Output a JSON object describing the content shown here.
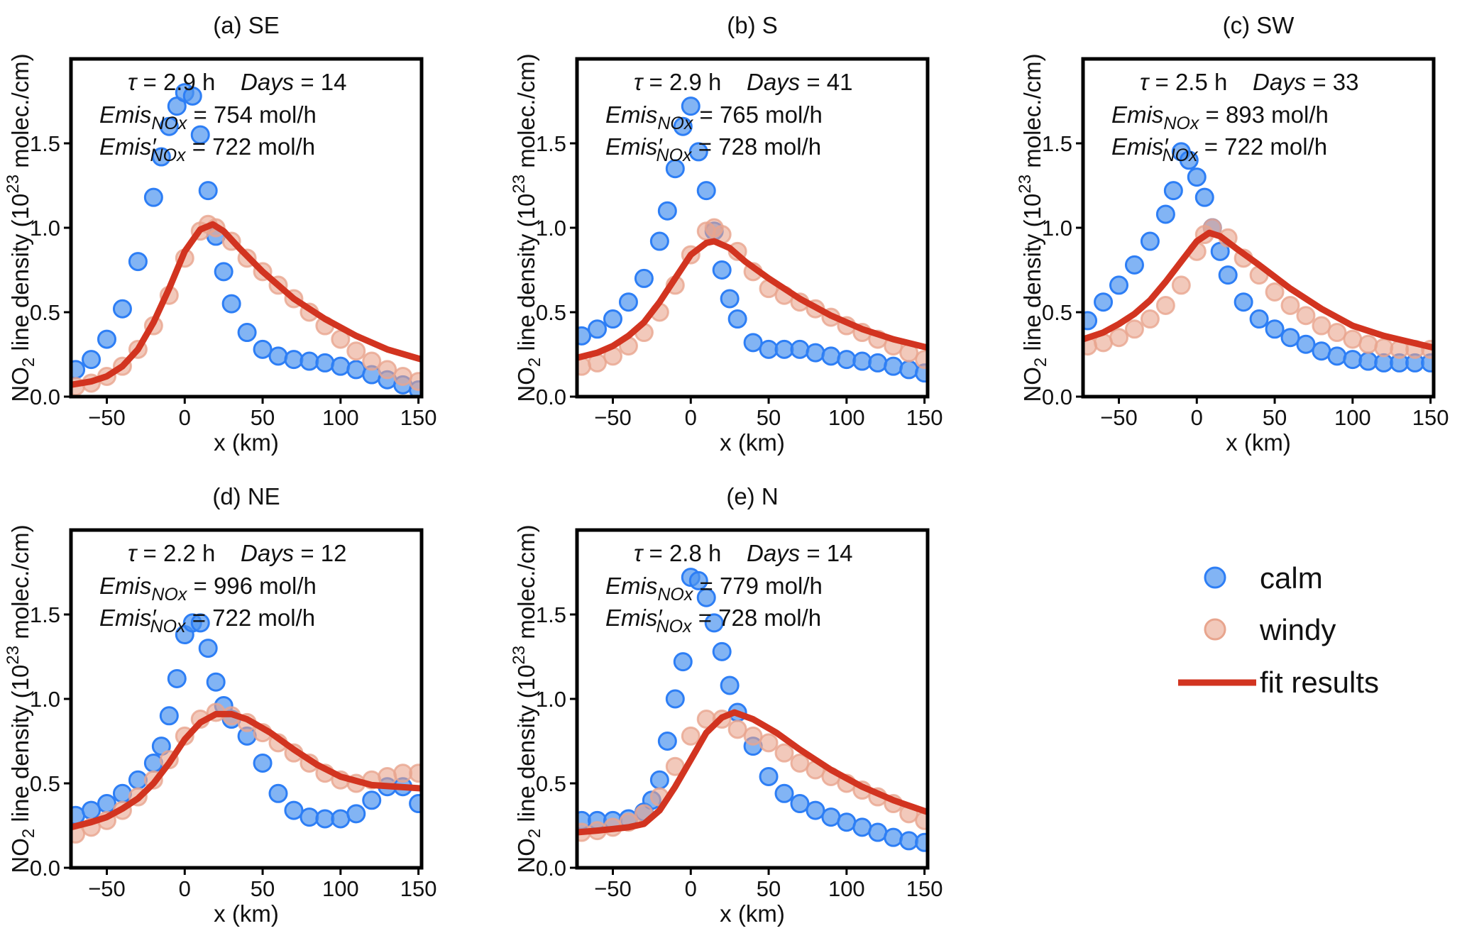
{
  "chart_data": [
    {
      "type": "scatter",
      "title": "(a) SE",
      "xlabel": "x (km)",
      "ylabel_parts": [
        "NO",
        "2",
        " line density (10",
        "23",
        " molec./cm)"
      ],
      "xlim": [
        -73,
        152
      ],
      "ylim": [
        0,
        2.0
      ],
      "xticks": [
        "−50",
        "0",
        "50",
        "100",
        "150"
      ],
      "xtick_values": [
        -50,
        0,
        50,
        100,
        150
      ],
      "yticks": [
        "0.0",
        "0.5",
        "1.0",
        "1.5"
      ],
      "ytick_values": [
        0.0,
        0.5,
        1.0,
        1.5
      ],
      "annotations": {
        "tau": "= 2.9 h",
        "days": "= 14",
        "emis": "= 754 mol/h",
        "emis_prime": "= 722 mol/h"
      },
      "calm": {
        "x": [
          -70,
          -60,
          -50,
          -40,
          -30,
          -20,
          -15,
          -10,
          -5,
          0,
          5,
          10,
          15,
          20,
          25,
          30,
          40,
          50,
          60,
          70,
          80,
          90,
          100,
          110,
          120,
          130,
          140,
          150
        ],
        "y": [
          0.16,
          0.22,
          0.34,
          0.52,
          0.8,
          1.18,
          1.42,
          1.6,
          1.72,
          1.8,
          1.78,
          1.55,
          1.22,
          0.95,
          0.74,
          0.55,
          0.38,
          0.28,
          0.24,
          0.22,
          0.21,
          0.2,
          0.18,
          0.16,
          0.13,
          0.1,
          0.07,
          0.04
        ]
      },
      "windy": {
        "x": [
          -70,
          -60,
          -50,
          -40,
          -30,
          -20,
          -10,
          0,
          10,
          15,
          20,
          30,
          40,
          50,
          60,
          70,
          80,
          90,
          100,
          110,
          120,
          130,
          140,
          150
        ],
        "y": [
          0.06,
          0.08,
          0.12,
          0.18,
          0.28,
          0.42,
          0.6,
          0.82,
          0.98,
          1.02,
          1.0,
          0.92,
          0.82,
          0.74,
          0.66,
          0.58,
          0.5,
          0.42,
          0.34,
          0.27,
          0.21,
          0.16,
          0.12,
          0.09
        ]
      },
      "fit": {
        "x": [
          -73,
          -60,
          -50,
          -40,
          -30,
          -20,
          -10,
          0,
          10,
          18,
          25,
          35,
          50,
          70,
          90,
          110,
          130,
          152
        ],
        "y": [
          0.07,
          0.09,
          0.12,
          0.18,
          0.28,
          0.44,
          0.64,
          0.86,
          0.99,
          1.02,
          0.98,
          0.88,
          0.74,
          0.58,
          0.46,
          0.36,
          0.28,
          0.22
        ]
      }
    },
    {
      "type": "scatter",
      "title": "(b) S",
      "xlabel": "x (km)",
      "ylabel_parts": [
        "NO",
        "2",
        " line density (10",
        "23",
        " molec./cm)"
      ],
      "xlim": [
        -73,
        152
      ],
      "ylim": [
        0,
        2.0
      ],
      "xticks": [
        "−50",
        "0",
        "50",
        "100",
        "150"
      ],
      "xtick_values": [
        -50,
        0,
        50,
        100,
        150
      ],
      "yticks": [
        "0.0",
        "0.5",
        "1.0",
        "1.5"
      ],
      "ytick_values": [
        0.0,
        0.5,
        1.0,
        1.5
      ],
      "annotations": {
        "tau": "= 2.9 h",
        "days": "= 41",
        "emis": "= 765 mol/h",
        "emis_prime": "= 728 mol/h"
      },
      "calm": {
        "x": [
          -70,
          -60,
          -50,
          -40,
          -30,
          -20,
          -15,
          -10,
          -5,
          0,
          5,
          10,
          15,
          20,
          25,
          30,
          40,
          50,
          60,
          70,
          80,
          90,
          100,
          110,
          120,
          130,
          140,
          150
        ],
        "y": [
          0.36,
          0.4,
          0.46,
          0.56,
          0.7,
          0.92,
          1.1,
          1.35,
          1.6,
          1.72,
          1.45,
          1.22,
          0.98,
          0.75,
          0.58,
          0.46,
          0.32,
          0.28,
          0.28,
          0.28,
          0.26,
          0.24,
          0.22,
          0.21,
          0.2,
          0.18,
          0.16,
          0.14
        ]
      },
      "windy": {
        "x": [
          -70,
          -60,
          -50,
          -40,
          -30,
          -20,
          -10,
          0,
          10,
          15,
          20,
          30,
          40,
          50,
          60,
          70,
          80,
          90,
          100,
          110,
          120,
          130,
          140,
          150
        ],
        "y": [
          0.18,
          0.2,
          0.24,
          0.3,
          0.38,
          0.5,
          0.66,
          0.84,
          0.98,
          1.0,
          0.96,
          0.86,
          0.74,
          0.64,
          0.6,
          0.56,
          0.52,
          0.47,
          0.42,
          0.38,
          0.34,
          0.3,
          0.26,
          0.22
        ]
      },
      "fit": {
        "x": [
          -73,
          -60,
          -50,
          -40,
          -30,
          -20,
          -10,
          0,
          10,
          15,
          25,
          35,
          50,
          70,
          90,
          110,
          130,
          152
        ],
        "y": [
          0.23,
          0.26,
          0.3,
          0.36,
          0.44,
          0.56,
          0.7,
          0.84,
          0.91,
          0.92,
          0.88,
          0.8,
          0.7,
          0.58,
          0.48,
          0.4,
          0.34,
          0.29
        ]
      }
    },
    {
      "type": "scatter",
      "title": "(c)  SW",
      "xlabel": "x (km)",
      "ylabel_parts": [
        "NO",
        "2",
        " line density (10",
        "23",
        " molec./cm)"
      ],
      "xlim": [
        -73,
        152
      ],
      "ylim": [
        0,
        2.0
      ],
      "xticks": [
        "−50",
        "0",
        "50",
        "100",
        "150"
      ],
      "xtick_values": [
        -50,
        0,
        50,
        100,
        150
      ],
      "yticks": [
        "0.0",
        "0.5",
        "1.0",
        "1.5"
      ],
      "ytick_values": [
        0.0,
        0.5,
        1.0,
        1.5
      ],
      "annotations": {
        "tau": "= 2.5 h",
        "days": "= 33",
        "emis": "= 893 mol/h",
        "emis_prime": "= 722 mol/h"
      },
      "calm": {
        "x": [
          -70,
          -60,
          -50,
          -40,
          -30,
          -20,
          -15,
          -10,
          -5,
          0,
          5,
          10,
          15,
          20,
          30,
          40,
          50,
          60,
          70,
          80,
          90,
          100,
          110,
          120,
          130,
          140,
          150
        ],
        "y": [
          0.45,
          0.56,
          0.66,
          0.78,
          0.92,
          1.08,
          1.22,
          1.45,
          1.4,
          1.3,
          1.18,
          1.0,
          0.86,
          0.72,
          0.56,
          0.46,
          0.4,
          0.35,
          0.31,
          0.27,
          0.24,
          0.22,
          0.21,
          0.2,
          0.2,
          0.2,
          0.2
        ]
      },
      "windy": {
        "x": [
          -70,
          -60,
          -50,
          -40,
          -30,
          -20,
          -10,
          0,
          5,
          10,
          20,
          30,
          40,
          50,
          60,
          70,
          80,
          90,
          100,
          110,
          120,
          130,
          140,
          150
        ],
        "y": [
          0.3,
          0.32,
          0.35,
          0.4,
          0.46,
          0.54,
          0.66,
          0.86,
          0.96,
          1.0,
          0.94,
          0.82,
          0.72,
          0.62,
          0.54,
          0.48,
          0.42,
          0.38,
          0.34,
          0.31,
          0.29,
          0.28,
          0.28,
          0.28
        ]
      },
      "fit": {
        "x": [
          -73,
          -60,
          -50,
          -40,
          -30,
          -20,
          -10,
          0,
          8,
          15,
          25,
          40,
          60,
          80,
          100,
          120,
          152
        ],
        "y": [
          0.34,
          0.38,
          0.43,
          0.49,
          0.57,
          0.68,
          0.8,
          0.92,
          0.97,
          0.95,
          0.88,
          0.78,
          0.64,
          0.52,
          0.42,
          0.36,
          0.29
        ]
      }
    },
    {
      "type": "scatter",
      "title": "(d) NE",
      "xlabel": "x (km)",
      "ylabel_parts": [
        "NO",
        "2",
        " line density (10",
        "23",
        " molec./cm)"
      ],
      "xlim": [
        -73,
        152
      ],
      "ylim": [
        0,
        2.0
      ],
      "xticks": [
        "−50",
        "0",
        "50",
        "100",
        "150"
      ],
      "xtick_values": [
        -50,
        0,
        50,
        100,
        150
      ],
      "yticks": [
        "0.0",
        "0.5",
        "1.0",
        "1.5"
      ],
      "ytick_values": [
        0.0,
        0.5,
        1.0,
        1.5
      ],
      "annotations": {
        "tau": "= 2.2 h",
        "days": "= 12",
        "emis": "= 996 mol/h",
        "emis_prime": "= 722 mol/h"
      },
      "calm": {
        "x": [
          -70,
          -60,
          -50,
          -40,
          -30,
          -20,
          -15,
          -10,
          -5,
          0,
          5,
          10,
          15,
          20,
          25,
          30,
          40,
          50,
          60,
          70,
          80,
          90,
          100,
          110,
          120,
          130,
          140,
          150
        ],
        "y": [
          0.31,
          0.34,
          0.38,
          0.44,
          0.52,
          0.62,
          0.72,
          0.9,
          1.12,
          1.38,
          1.45,
          1.45,
          1.3,
          1.1,
          0.96,
          0.88,
          0.78,
          0.62,
          0.44,
          0.34,
          0.3,
          0.29,
          0.29,
          0.32,
          0.4,
          0.48,
          0.48,
          0.38
        ]
      },
      "windy": {
        "x": [
          -70,
          -60,
          -50,
          -40,
          -30,
          -20,
          -10,
          0,
          10,
          20,
          30,
          40,
          50,
          60,
          70,
          80,
          90,
          100,
          110,
          120,
          130,
          140,
          150
        ],
        "y": [
          0.2,
          0.24,
          0.28,
          0.34,
          0.42,
          0.52,
          0.64,
          0.78,
          0.88,
          0.92,
          0.9,
          0.86,
          0.8,
          0.74,
          0.68,
          0.62,
          0.56,
          0.52,
          0.5,
          0.52,
          0.54,
          0.56,
          0.56
        ]
      },
      "fit": {
        "x": [
          -73,
          -60,
          -50,
          -40,
          -30,
          -20,
          -10,
          0,
          10,
          20,
          30,
          40,
          55,
          70,
          85,
          100,
          120,
          152
        ],
        "y": [
          0.24,
          0.27,
          0.3,
          0.35,
          0.41,
          0.5,
          0.62,
          0.76,
          0.86,
          0.91,
          0.91,
          0.88,
          0.8,
          0.7,
          0.61,
          0.54,
          0.49,
          0.47
        ]
      }
    },
    {
      "type": "scatter",
      "title": "(e) N",
      "xlabel": "x (km)",
      "ylabel_parts": [
        "NO",
        "2",
        " line density (10",
        "23",
        " molec./cm)"
      ],
      "xlim": [
        -73,
        152
      ],
      "ylim": [
        0,
        2.0
      ],
      "xticks": [
        "−50",
        "0",
        "50",
        "100",
        "150"
      ],
      "xtick_values": [
        -50,
        0,
        50,
        100,
        150
      ],
      "yticks": [
        "0.0",
        "0.5",
        "1.0",
        "1.5"
      ],
      "ytick_values": [
        0.0,
        0.5,
        1.0,
        1.5
      ],
      "annotations": {
        "tau": "= 2.8 h",
        "days": "= 14",
        "emis": "= 779 mol/h",
        "emis_prime": "= 728 mol/h"
      },
      "calm": {
        "x": [
          -70,
          -60,
          -50,
          -40,
          -30,
          -25,
          -20,
          -15,
          -10,
          -5,
          0,
          5,
          10,
          15,
          20,
          25,
          30,
          40,
          50,
          60,
          70,
          80,
          90,
          100,
          110,
          120,
          130,
          140,
          150
        ],
        "y": [
          0.28,
          0.28,
          0.28,
          0.29,
          0.33,
          0.4,
          0.52,
          0.75,
          1.0,
          1.22,
          1.72,
          1.7,
          1.6,
          1.45,
          1.28,
          1.08,
          0.92,
          0.72,
          0.54,
          0.44,
          0.38,
          0.34,
          0.3,
          0.27,
          0.24,
          0.21,
          0.18,
          0.16,
          0.15
        ]
      },
      "windy": {
        "x": [
          -70,
          -60,
          -50,
          -40,
          -30,
          -20,
          -10,
          0,
          10,
          20,
          30,
          40,
          50,
          60,
          70,
          80,
          90,
          100,
          110,
          120,
          130,
          140,
          150
        ],
        "y": [
          0.21,
          0.22,
          0.24,
          0.27,
          0.32,
          0.42,
          0.6,
          0.78,
          0.88,
          0.88,
          0.82,
          0.78,
          0.74,
          0.68,
          0.62,
          0.58,
          0.54,
          0.5,
          0.46,
          0.42,
          0.38,
          0.32,
          0.28
        ]
      },
      "fit": {
        "x": [
          -73,
          -60,
          -50,
          -40,
          -30,
          -20,
          -10,
          0,
          10,
          20,
          28,
          40,
          55,
          70,
          90,
          110,
          130,
          152
        ],
        "y": [
          0.21,
          0.22,
          0.23,
          0.24,
          0.26,
          0.34,
          0.48,
          0.64,
          0.8,
          0.89,
          0.92,
          0.88,
          0.8,
          0.7,
          0.58,
          0.48,
          0.4,
          0.33
        ]
      }
    }
  ],
  "annotation_labels": {
    "tau_symbol": "τ",
    "days_word": "Days",
    "emis_base": "Emis",
    "emis_prime_base": "Emis′",
    "emis_sub": "NOx"
  },
  "legend": {
    "calm": "calm",
    "windy": "windy",
    "fit": "fit results"
  },
  "colors": {
    "calm_fill": "#4d94f0",
    "calm_edge": "#2d7ef5",
    "windy_fill": "#e9a58e",
    "windy_edge": "#e8a58e",
    "fit": "#d23420",
    "axis": "#000000"
  }
}
